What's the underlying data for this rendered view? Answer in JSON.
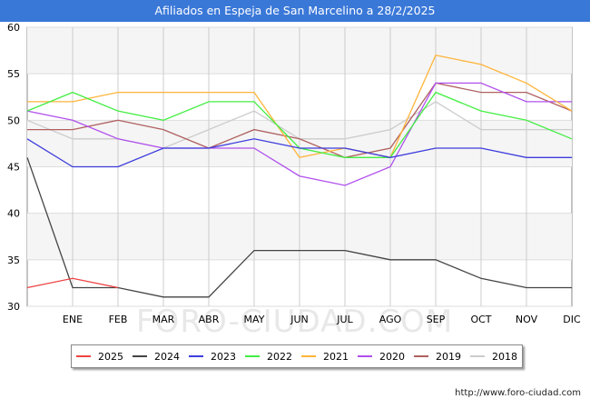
{
  "title": "Afiliados en Espeja de San Marcelino a 28/2/2025",
  "watermark": "FORO-CIUDAD.COM",
  "footer_url": "http://www.foro-ciudad.com",
  "chart_data": {
    "type": "line",
    "title": "Afiliados en Espeja de San Marcelino a 28/2/2025",
    "xlabel": "",
    "ylabel": "",
    "categories": [
      "",
      "ENE",
      "FEB",
      "MAR",
      "ABR",
      "MAY",
      "JUN",
      "JUL",
      "AGO",
      "SEP",
      "OCT",
      "NOV",
      "DIC"
    ],
    "ylim": [
      30,
      60
    ],
    "yticks": [
      30,
      35,
      40,
      45,
      50,
      55,
      60
    ],
    "grid": true,
    "legend_position": "bottom",
    "series": [
      {
        "name": "2025",
        "color": "#ee4444",
        "values": [
          32,
          33,
          32,
          null,
          null,
          null,
          null,
          null,
          null,
          null,
          null,
          null,
          null
        ]
      },
      {
        "name": "2024",
        "color": "#444444",
        "values": [
          46,
          32,
          32,
          31,
          31,
          36,
          36,
          36,
          35,
          35,
          33,
          32,
          32
        ]
      },
      {
        "name": "2023",
        "color": "#3d3ddd",
        "values": [
          48,
          45,
          45,
          47,
          47,
          48,
          47,
          47,
          46,
          47,
          47,
          46,
          46
        ]
      },
      {
        "name": "2022",
        "color": "#44ee44",
        "values": [
          51,
          53,
          51,
          50,
          52,
          52,
          47,
          46,
          46,
          53,
          51,
          50,
          48
        ]
      },
      {
        "name": "2021",
        "color": "#ffb43a",
        "values": [
          52,
          52,
          53,
          53,
          53,
          53,
          46,
          47,
          46,
          57,
          56,
          54,
          51
        ]
      },
      {
        "name": "2020",
        "color": "#b050ee",
        "values": [
          51,
          50,
          48,
          47,
          47,
          47,
          44,
          43,
          45,
          54,
          54,
          52,
          52
        ]
      },
      {
        "name": "2019",
        "color": "#b06060",
        "values": [
          49,
          49,
          50,
          49,
          47,
          49,
          48,
          46,
          47,
          54,
          53,
          53,
          51
        ]
      },
      {
        "name": "2018",
        "color": "#cccccc",
        "values": [
          50,
          48,
          48,
          47,
          49,
          51,
          48,
          48,
          49,
          52,
          49,
          49,
          49
        ]
      }
    ]
  }
}
